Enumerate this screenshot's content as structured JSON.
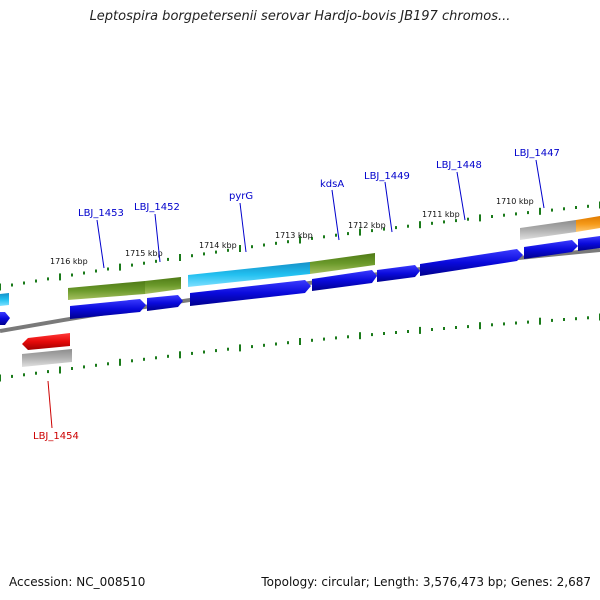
{
  "title": "Leptospira borgpetersenii serovar Hardjo-bovis JB197 chromos...",
  "footer": {
    "accession": "Accession: NC_008510",
    "summary": "Topology: circular; Length: 3,576,473 bp; Genes: 2,687"
  },
  "colors": {
    "forward_gene": "#0a0adc",
    "hit_gene_olive": "#5f8a23",
    "hit_gene_cyan": "#1ab6e6",
    "hit_gene_orange": "#f08c0a",
    "reverse_gene_red": "#e60a0a",
    "pseudo_gray": "#a8a8a8",
    "backbone": "#808080",
    "tick": "#1a7a1a",
    "label_forward": "#0000cc",
    "label_reverse": "#cc0000"
  },
  "kbp_scale": [
    {
      "label": "1716 kbp",
      "kbp": 1716
    },
    {
      "label": "1715 kbp",
      "kbp": 1715
    },
    {
      "label": "1714 kbp",
      "kbp": 1714
    },
    {
      "label": "1713 kbp",
      "kbp": 1713
    },
    {
      "label": "1712 kbp",
      "kbp": 1712
    },
    {
      "label": "1711 kbp",
      "kbp": 1711
    },
    {
      "label": "1710 kbp",
      "kbp": 1710
    }
  ],
  "gene_labels": [
    {
      "id": "LBJ_1453",
      "text": "LBJ_1453",
      "strand": "forward"
    },
    {
      "id": "LBJ_1452",
      "text": "LBJ_1452",
      "strand": "forward"
    },
    {
      "id": "pyrG",
      "text": "pyrG",
      "strand": "forward"
    },
    {
      "id": "kdsA",
      "text": "kdsA",
      "strand": "forward"
    },
    {
      "id": "LBJ_1449",
      "text": "LBJ_1449",
      "strand": "forward"
    },
    {
      "id": "LBJ_1448",
      "text": "LBJ_1448",
      "strand": "forward"
    },
    {
      "id": "LBJ_1447",
      "text": "LBJ_1447",
      "strand": "forward"
    },
    {
      "id": "LBJ_1454",
      "text": "LBJ_1454",
      "strand": "reverse"
    }
  ]
}
